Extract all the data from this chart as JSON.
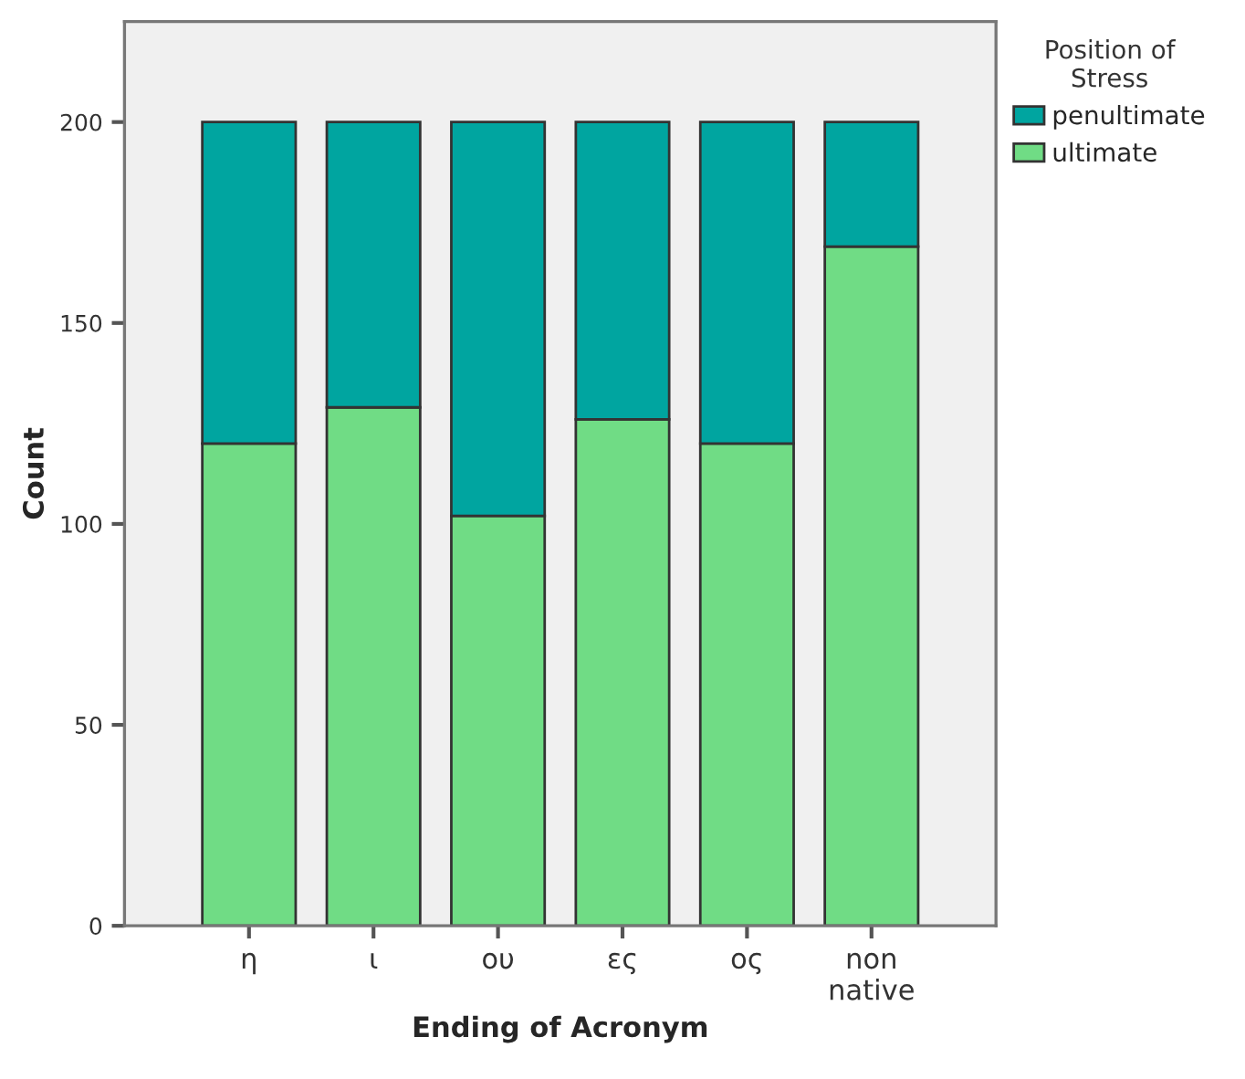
{
  "chart_data": {
    "type": "bar",
    "stacked": true,
    "xlabel": "Ending of Acronym",
    "ylabel": "Count",
    "legend_title": "Position of\nStress",
    "legend": "top right",
    "categories": [
      "η",
      "ι",
      "ου",
      "ες",
      "ος",
      "non\nnative"
    ],
    "series": [
      {
        "name": "ultimate",
        "color": "#70dc85",
        "values": [
          120,
          129,
          102,
          126,
          120,
          169
        ]
      },
      {
        "name": "penultimate",
        "color": "#00a5a0",
        "values": [
          80,
          71,
          98,
          74,
          80,
          31
        ]
      }
    ],
    "ylim": [
      0,
      225
    ],
    "yticks": [
      0,
      50,
      100,
      150,
      200
    ],
    "grid": false
  }
}
